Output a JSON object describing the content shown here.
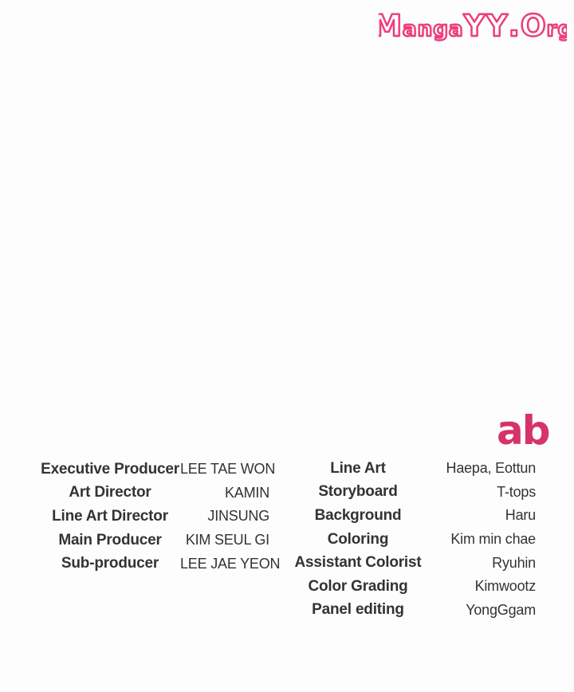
{
  "page": {
    "background_color": "#fdfdfd"
  },
  "watermark": {
    "full_text": "MangaYY.Org",
    "parts": {
      "p1": "M",
      "p2": "anga",
      "p3": "YY",
      "p4": ".",
      "p5": "O",
      "p6": "rg"
    },
    "outline_color": "#ee3d7d",
    "fill_color": "#ffffff"
  },
  "studio": {
    "logo_text": "ab",
    "color": "#d63368"
  },
  "credits": {
    "text_color": "#333333",
    "name_color": "#3a3a3a",
    "left_column": [
      {
        "role": "Executive Producer",
        "name": "LEE TAE WON"
      },
      {
        "role": "Art Director",
        "name": "KAMIN"
      },
      {
        "role": "Line Art Director",
        "name": "JINSUNG"
      },
      {
        "role": "Main Producer",
        "name": "KIM SEUL GI"
      },
      {
        "role": "Sub-producer",
        "name": "LEE JAE YEON"
      }
    ],
    "right_column": [
      {
        "role": "Line Art",
        "name": "Haepa, Eottun"
      },
      {
        "role": "Storyboard",
        "name": "T-tops"
      },
      {
        "role": "Background",
        "name": "Haru"
      },
      {
        "role": "Coloring",
        "name": "Kim min chae"
      },
      {
        "role": "Assistant Colorist",
        "name": "Ryuhin"
      },
      {
        "role": "Color Grading",
        "name": "Kimwootz"
      },
      {
        "role": "Panel editing",
        "name": "YongGgam"
      }
    ]
  }
}
